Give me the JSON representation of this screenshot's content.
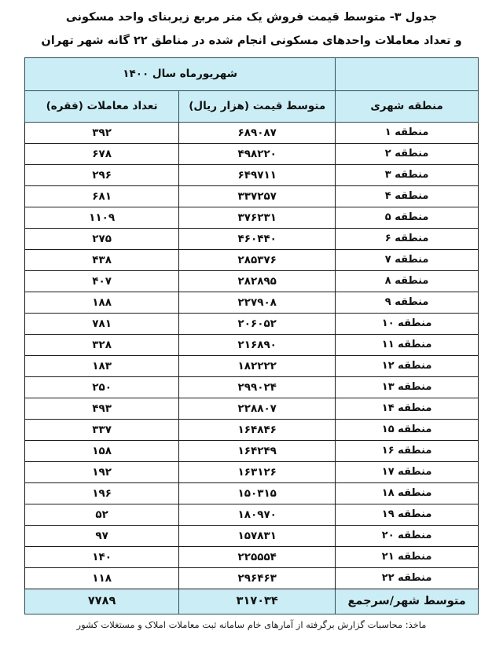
{
  "page": {
    "title_line1": "جدول ۳- متوسط قیمت فروش یک متر مربع زیربنای واحد مسکونی",
    "title_line2": "و تعداد معاملات واحدهای مسکونی انجام شده در مناطق ۲۲ گانه شهر تهران",
    "source_note": "ماخذ: محاسبات گزارش برگرفته از آمارهای خام سامانه ثبت معاملات املاک و مستغلات کشور"
  },
  "table": {
    "period_header": "شهریورماه سال ۱۴۰۰",
    "columns": {
      "region": "منطقه شهری",
      "price": "متوسط قیمت (هزار ریال)",
      "count": "تعداد معاملات (فقره)"
    },
    "rows": [
      {
        "region": "منطقه ۱",
        "price": "۶۸۹۰۸۷",
        "count": "۳۹۲"
      },
      {
        "region": "منطقه ۲",
        "price": "۴۹۸۲۲۰",
        "count": "۶۷۸"
      },
      {
        "region": "منطقه ۳",
        "price": "۶۴۹۷۱۱",
        "count": "۲۹۶"
      },
      {
        "region": "منطقه ۴",
        "price": "۳۳۷۲۵۷",
        "count": "۶۸۱"
      },
      {
        "region": "منطقه ۵",
        "price": "۳۷۶۲۳۱",
        "count": "۱۱۰۹"
      },
      {
        "region": "منطقه ۶",
        "price": "۴۶۰۴۴۰",
        "count": "۲۷۵"
      },
      {
        "region": "منطقه ۷",
        "price": "۲۸۵۳۷۶",
        "count": "۴۳۸"
      },
      {
        "region": "منطقه ۸",
        "price": "۲۸۲۸۹۵",
        "count": "۴۰۷"
      },
      {
        "region": "منطقه ۹",
        "price": "۲۲۷۹۰۸",
        "count": "۱۸۸"
      },
      {
        "region": "منطقه ۱۰",
        "price": "۲۰۶۰۵۲",
        "count": "۷۸۱"
      },
      {
        "region": "منطقه ۱۱",
        "price": "۲۱۶۸۹۰",
        "count": "۳۲۸"
      },
      {
        "region": "منطقه ۱۲",
        "price": "۱۸۲۲۲۲",
        "count": "۱۸۳"
      },
      {
        "region": "منطقه ۱۳",
        "price": "۲۹۹۰۲۴",
        "count": "۲۵۰"
      },
      {
        "region": "منطقه ۱۴",
        "price": "۲۲۸۸۰۷",
        "count": "۴۹۳"
      },
      {
        "region": "منطقه ۱۵",
        "price": "۱۶۴۸۴۶",
        "count": "۳۳۷"
      },
      {
        "region": "منطقه ۱۶",
        "price": "۱۶۴۲۴۹",
        "count": "۱۵۸"
      },
      {
        "region": "منطقه ۱۷",
        "price": "۱۶۳۱۲۶",
        "count": "۱۹۲"
      },
      {
        "region": "منطقه ۱۸",
        "price": "۱۵۰۳۱۵",
        "count": "۱۹۶"
      },
      {
        "region": "منطقه ۱۹",
        "price": "۱۸۰۹۷۰",
        "count": "۵۲"
      },
      {
        "region": "منطقه ۲۰",
        "price": "۱۵۷۸۳۱",
        "count": "۹۷"
      },
      {
        "region": "منطقه ۲۱",
        "price": "۲۲۵۵۵۴",
        "count": "۱۴۰"
      },
      {
        "region": "منطقه ۲۲",
        "price": "۲۹۶۴۶۳",
        "count": "۱۱۸"
      }
    ],
    "total": {
      "region": "متوسط شهر/سرجمع",
      "price": "۳۱۷۰۳۴",
      "count": "۷۷۸۹"
    }
  },
  "colors": {
    "header_bg": "#cbeef6",
    "border": "#2e4f57",
    "text": "#101010"
  }
}
